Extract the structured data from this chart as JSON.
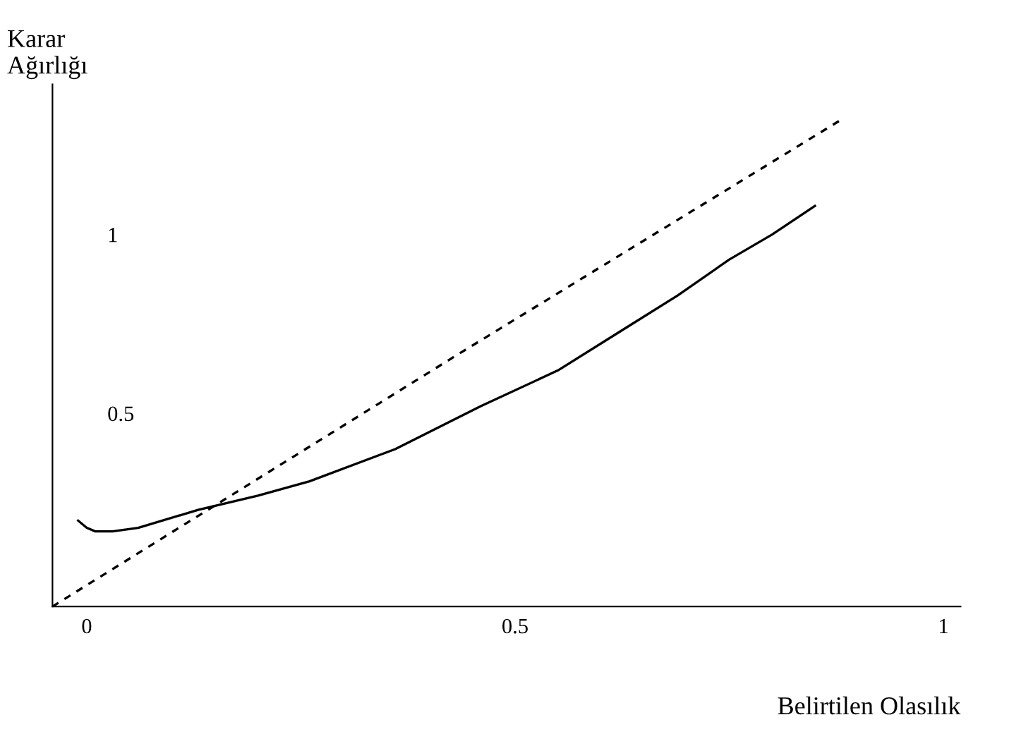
{
  "chart_data": {
    "type": "line",
    "xlabel": "Belirtilen Olasılık",
    "ylabel": "Karar\nAğırlığı",
    "xlim": [
      -0.04,
      1.02
    ],
    "ylim": [
      -0.04,
      1.42
    ],
    "xticks": [
      0,
      0.5,
      1
    ],
    "yticks": [
      0.5,
      1
    ],
    "grid": false,
    "legend": false,
    "series": [
      {
        "color": "#000000",
        "line_style": "solid",
        "x": [
          -0.01,
          0.0,
          0.01,
          0.03,
          0.06,
          0.13,
          0.2,
          0.26,
          0.36,
          0.46,
          0.55,
          0.63,
          0.69,
          0.75,
          0.8,
          0.85
        ],
        "values": [
          0.2,
          0.18,
          0.17,
          0.17,
          0.18,
          0.23,
          0.27,
          0.31,
          0.4,
          0.52,
          0.62,
          0.74,
          0.83,
          0.93,
          1.0,
          1.08
        ]
      },
      {
        "color": "#000000",
        "line_style": "dashed",
        "x": [
          -0.04,
          0.43,
          0.88
        ],
        "values": [
          -0.04,
          0.66,
          1.32
        ]
      }
    ]
  }
}
